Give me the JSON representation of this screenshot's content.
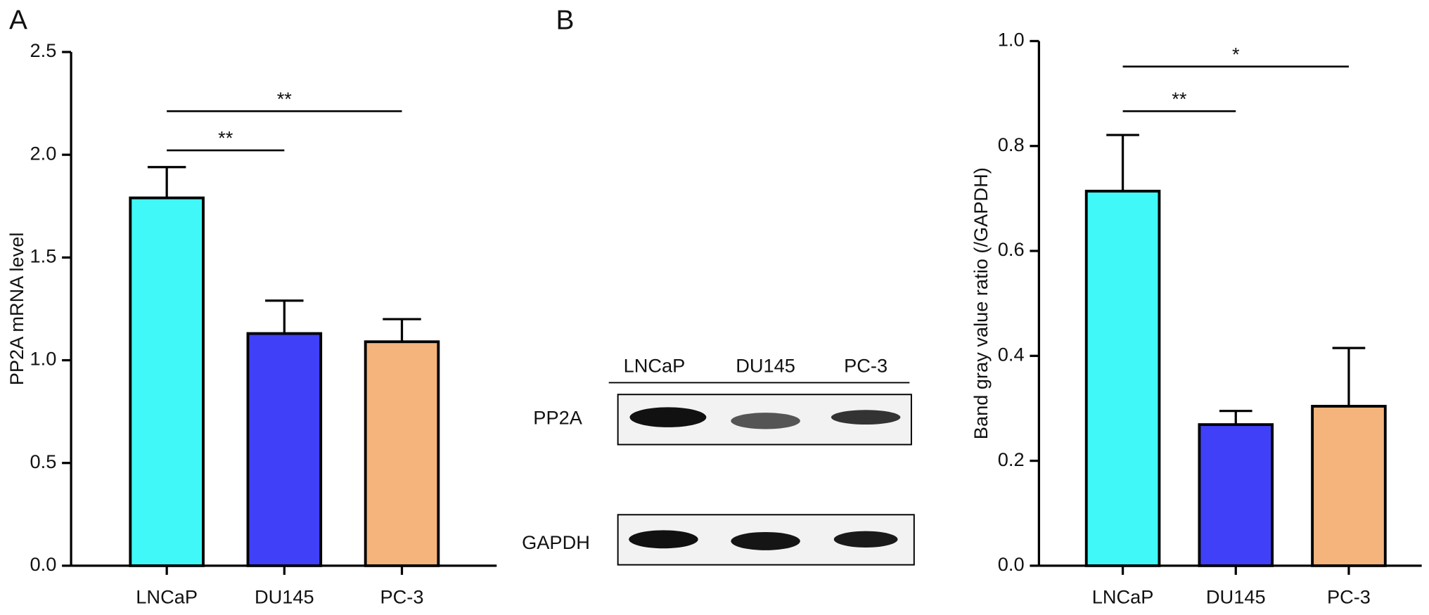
{
  "panel_labels": [
    "A",
    "B"
  ],
  "blot": {
    "lanes": [
      "LNCaP",
      "DU145",
      "PC-3"
    ],
    "rows": [
      "PP2A",
      "GAPDH"
    ]
  },
  "chart_data": [
    {
      "type": "bar",
      "ylabel": "PP2A mRNA level",
      "categories": [
        "LNCaP",
        "DU145",
        "PC-3"
      ],
      "values": [
        1.79,
        1.13,
        1.09
      ],
      "errors": [
        0.15,
        0.16,
        0.11
      ],
      "colors": [
        "#40f8f8",
        "#4040f8",
        "#f4b47c"
      ],
      "ylim": [
        0,
        2.5
      ],
      "yticks": [
        {
          "value": 0,
          "label": "0.0"
        },
        0.5,
        {
          "value": 1,
          "label": "1.0"
        },
        1.5,
        {
          "value": 2,
          "label": "2.0"
        },
        2.5
      ],
      "significance": [
        {
          "label": "**",
          "between": [
            0,
            1
          ]
        },
        {
          "label": "**",
          "between": [
            0,
            2
          ]
        }
      ]
    },
    {
      "type": "bar",
      "ylabel": "Band gray value ratio (/GAPDH)",
      "categories": [
        "LNCaP",
        "DU145",
        "PC-3"
      ],
      "values": [
        0.714,
        0.269,
        0.304
      ],
      "errors": [
        0.107,
        0.026,
        0.111
      ],
      "colors": [
        "#40f8f8",
        "#4040f8",
        "#f4b47c"
      ],
      "ylim": [
        0,
        1
      ],
      "yticks": [
        {
          "value": 0,
          "label": "0.0"
        },
        0.2,
        0.4,
        0.6,
        0.8,
        {
          "value": 1,
          "label": "1.0"
        }
      ],
      "significance": [
        {
          "label": "**",
          "between": [
            0,
            1
          ]
        },
        {
          "label": "*",
          "between": [
            0,
            2
          ]
        }
      ]
    }
  ]
}
